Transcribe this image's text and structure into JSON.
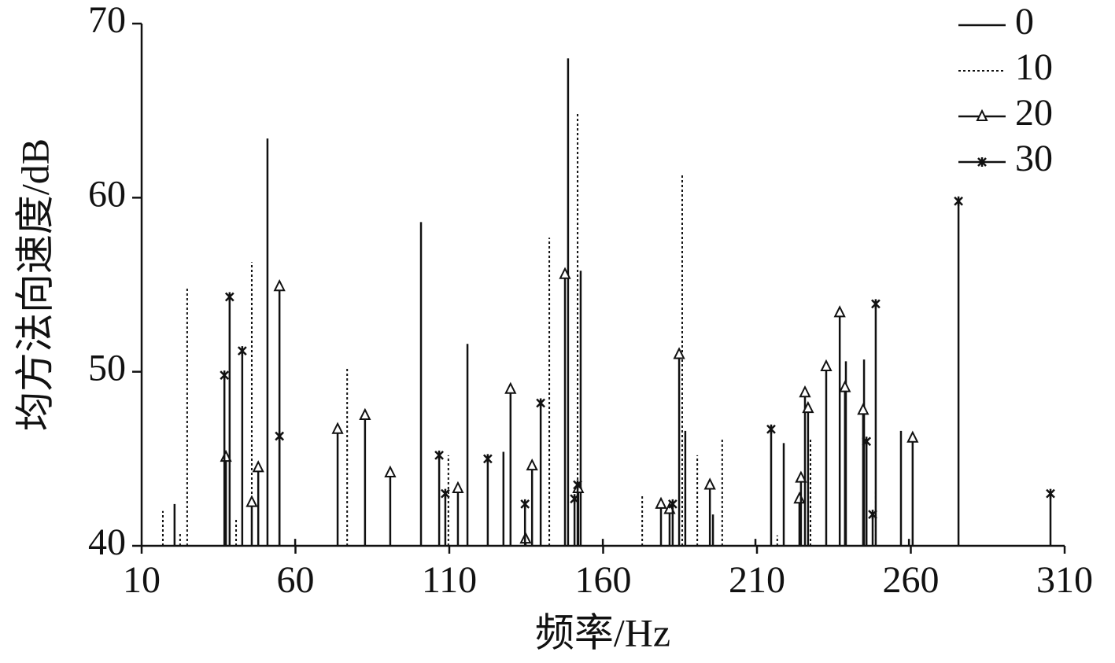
{
  "chart_data": {
    "type": "stem",
    "x_label": "频率/Hz",
    "y_label": "均方法向速度/dB",
    "xlim": [
      10,
      310
    ],
    "xticks": [
      10,
      60,
      110,
      160,
      210,
      260,
      310
    ],
    "ylim": [
      40,
      70
    ],
    "yticks": [
      40,
      50,
      60,
      70
    ],
    "legend": "top-right",
    "series": [
      {
        "name": "0",
        "color": "#111111",
        "dash": "solid",
        "marker": "none",
        "x": [
          20.7,
          50.9,
          59.9,
          100.8,
          115.9,
          127.6,
          148.6,
          152.7,
          159.9,
          186.7,
          195.7,
          209.5,
          218.7,
          238.9,
          244.8,
          256.8,
          259.4
        ],
        "values": [
          42.4,
          63.4,
          40.4,
          58.6,
          51.6,
          45.4,
          68.0,
          55.8,
          40.4,
          46.6,
          41.8,
          40.4,
          45.9,
          50.6,
          50.7,
          46.6,
          40.4
        ]
      },
      {
        "name": "10",
        "color": "#111111",
        "dash": "dotted",
        "marker": "none",
        "x": [
          16.9,
          22.5,
          24.8,
          40.7,
          45.8,
          76.8,
          109.7,
          142.5,
          151.7,
          172.7,
          185.7,
          190.6,
          198.7,
          216.6,
          227.4,
          248.6
        ],
        "values": [
          42.0,
          40.7,
          54.9,
          41.6,
          56.3,
          50.3,
          45.2,
          57.7,
          64.9,
          42.9,
          61.4,
          45.2,
          46.1,
          40.6,
          46.1,
          43.1
        ]
      },
      {
        "name": "20",
        "color": "#111111",
        "dash": "solid",
        "marker": "triangle",
        "x": [
          37.4,
          45.8,
          47.9,
          54.8,
          73.7,
          82.6,
          90.8,
          112.8,
          129.9,
          134.8,
          136.9,
          147.6,
          151.9,
          178.8,
          181.6,
          184.7,
          194.7,
          223.8,
          224.3,
          225.6,
          226.6,
          232.5,
          236.9,
          238.6,
          244.5,
          260.6
        ],
        "values": [
          45.1,
          42.5,
          44.5,
          54.9,
          46.7,
          47.5,
          44.2,
          43.3,
          49.0,
          40.4,
          44.6,
          55.6,
          43.3,
          42.4,
          42.1,
          51.0,
          43.5,
          42.7,
          43.9,
          48.8,
          47.9,
          50.3,
          53.4,
          49.1,
          47.8,
          46.2
        ]
      },
      {
        "name": "30",
        "color": "#111111",
        "dash": "solid",
        "marker": "x",
        "x": [
          36.9,
          38.6,
          42.7,
          54.8,
          106.7,
          108.7,
          122.5,
          134.6,
          139.7,
          150.7,
          151.7,
          182.6,
          214.6,
          245.6,
          247.6,
          248.6,
          275.5,
          305.4
        ],
        "values": [
          49.8,
          54.3,
          51.2,
          46.3,
          45.2,
          43.0,
          45.0,
          42.4,
          48.2,
          42.7,
          43.5,
          42.4,
          46.7,
          46.0,
          41.8,
          53.9,
          59.8,
          43.0
        ]
      }
    ]
  }
}
